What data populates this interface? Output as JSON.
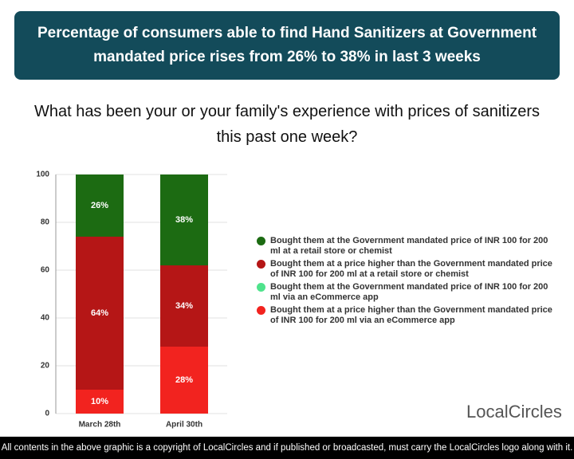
{
  "header": {
    "title": "Percentage of consumers able to find Hand Sanitizers at Government mandated price rises from 26% to 38% in last 3 weeks"
  },
  "chart_data": {
    "type": "stacked_bar",
    "title": "What has been your or your family's experience with prices of sanitizers this past one week?",
    "categories": [
      "March 28th",
      "April 30th"
    ],
    "series": [
      {
        "name": "Bought them at a price higher than the Government mandated price of INR 100 for 200 ml via an eCommerce app",
        "color": "#f2231f",
        "values": [
          10,
          28
        ],
        "value_labels": [
          "10%",
          "28%"
        ]
      },
      {
        "name": "Bought them at a price higher than the Government mandated price of INR 100 for 200 ml at a retail store or chemist",
        "color": "#b51616",
        "values": [
          64,
          34
        ],
        "value_labels": [
          "64%",
          "34%"
        ]
      },
      {
        "name": "Bought them at the Government mandated price of INR 100 for 200 ml via an eCommerce app",
        "color": "#4fe38c",
        "values": [
          0,
          0
        ]
      },
      {
        "name": "Bought them at the Government mandated price of INR 100 for 200 ml at a retail store or chemist",
        "color": "#1c6b12",
        "values": [
          26,
          38
        ],
        "value_labels": [
          "26%",
          "38%"
        ]
      }
    ],
    "legend_order": [
      3,
      1,
      2,
      0
    ],
    "ylim": [
      0,
      100
    ],
    "yticks": [
      0,
      20,
      40,
      60,
      80,
      100
    ],
    "grid": true
  },
  "logo": "LocalCircles",
  "footer": "All contents in the above graphic is a copyright of LocalCircles and if published or broadcasted, must carry the LocalCircles logo along with it."
}
